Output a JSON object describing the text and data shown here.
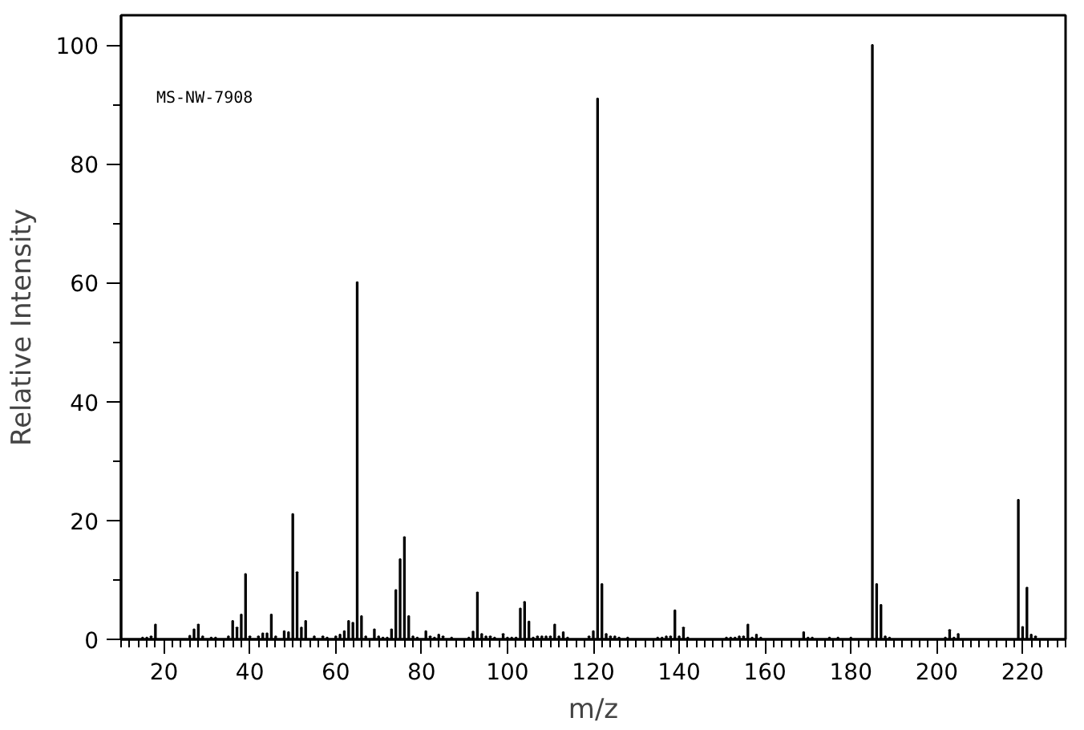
{
  "chart_data": {
    "type": "bar",
    "xlabel": "m/z",
    "ylabel": "Relative Intensity",
    "annotations": [
      "MS-NW-7908"
    ],
    "x": [
      15,
      16,
      17,
      18,
      26,
      27,
      28,
      29,
      31,
      32,
      35,
      36,
      37,
      38,
      39,
      40,
      42,
      43,
      44,
      45,
      46,
      48,
      49,
      50,
      51,
      52,
      53,
      55,
      57,
      58,
      60,
      61,
      62,
      63,
      64,
      65,
      66,
      67,
      69,
      70,
      71,
      72,
      73,
      74,
      75,
      76,
      77,
      78,
      79,
      81,
      82,
      83,
      84,
      85,
      87,
      91,
      92,
      93,
      94,
      95,
      96,
      97,
      99,
      100,
      101,
      102,
      103,
      104,
      105,
      106,
      107,
      108,
      109,
      110,
      111,
      112,
      113,
      114,
      119,
      120,
      121,
      122,
      123,
      124,
      125,
      126,
      128,
      135,
      136,
      137,
      138,
      139,
      140,
      141,
      142,
      151,
      152,
      153,
      154,
      155,
      156,
      157,
      158,
      159,
      169,
      170,
      171,
      175,
      177,
      180,
      185,
      186,
      187,
      188,
      189,
      202,
      203,
      204,
      205,
      219,
      220,
      221,
      222,
      223
    ],
    "values": [
      0.3,
      0.3,
      0.5,
      2.5,
      0.6,
      1.7,
      2.5,
      0.5,
      0.3,
      0.3,
      0.5,
      3.1,
      2.0,
      4.2,
      11.0,
      0.5,
      0.5,
      1.0,
      1.0,
      4.2,
      0.5,
      1.4,
      1.2,
      21.1,
      11.3,
      2.0,
      3.1,
      0.5,
      0.5,
      0.3,
      0.5,
      0.8,
      1.4,
      3.1,
      2.8,
      60.1,
      3.9,
      0.5,
      1.7,
      0.5,
      0.3,
      0.3,
      1.7,
      8.3,
      13.5,
      17.2,
      3.9,
      0.5,
      0.3,
      1.4,
      0.5,
      0.3,
      0.8,
      0.5,
      0.3,
      0.3,
      1.3,
      7.9,
      0.9,
      0.5,
      0.5,
      0.3,
      0.9,
      0.3,
      0.3,
      0.3,
      5.2,
      6.3,
      3.0,
      0.3,
      0.5,
      0.5,
      0.5,
      0.5,
      2.5,
      0.5,
      1.2,
      0.3,
      0.5,
      1.4,
      91.0,
      9.3,
      0.9,
      0.5,
      0.5,
      0.3,
      0.3,
      0.3,
      0.3,
      0.5,
      0.5,
      4.9,
      0.5,
      2.0,
      0.3,
      0.3,
      0.3,
      0.3,
      0.5,
      0.5,
      2.5,
      0.3,
      0.8,
      0.3,
      1.2,
      0.3,
      0.3,
      0.3,
      0.3,
      0.3,
      100,
      9.3,
      5.8,
      0.5,
      0.3,
      0.3,
      1.6,
      0.3,
      0.9,
      23.5,
      2.1,
      8.7,
      0.8,
      0.5
    ],
    "color": "#000000",
    "xlim": [
      10,
      230
    ],
    "xticks": [
      20,
      40,
      60,
      80,
      100,
      120,
      140,
      160,
      180,
      200,
      220
    ],
    "ylim": [
      0,
      105
    ],
    "yticks": [
      0,
      20,
      40,
      60,
      80,
      100
    ],
    "grid": false
  }
}
